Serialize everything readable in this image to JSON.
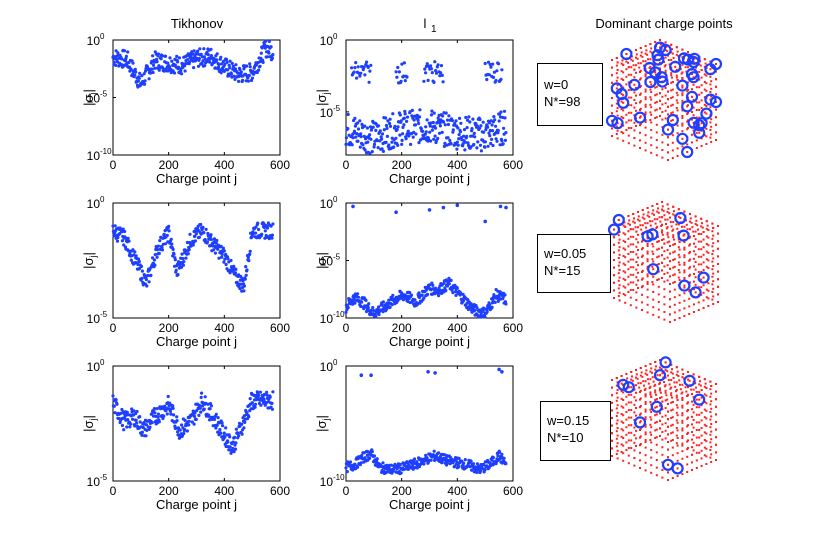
{
  "column_titles": {
    "tikhonov": "Tikhonov",
    "l1": "l",
    "l1_sub": "1",
    "dominant": "Dominant charge points"
  },
  "axis_labels": {
    "xlabel": "Charge point j",
    "ylabel_base": "|σ",
    "ylabel_sub": "j",
    "ylabel_end": "|"
  },
  "weights": [
    {
      "w_label": "w=0",
      "n_label": "N*=98"
    },
    {
      "w_label": "w=0.05",
      "n_label": "N*=15"
    },
    {
      "w_label": "w=0.15",
      "n_label": "N*=10"
    }
  ],
  "colors": {
    "points": "#1f3fff",
    "dominant_circle": "#1f3fff",
    "charge_grid": "#ff2020",
    "axis": "#000000"
  },
  "chart_data": [
    {
      "type": "scatter",
      "row": 0,
      "column": "Tikhonov",
      "scale": "log",
      "xlim": [
        0,
        600
      ],
      "xticks": [
        "0",
        "200",
        "400",
        "600"
      ],
      "ylim_exp": [
        -10,
        0
      ],
      "yticks": [
        {
          "base": "10",
          "exp": "0",
          "value_exp": 0
        },
        {
          "base": "10",
          "exp": "-5",
          "value_exp": -5
        },
        {
          "base": "10",
          "exp": "-10",
          "value_exp": -10
        }
      ],
      "xlabel": "Charge point j",
      "ylabel": "|σj|",
      "trend_x": [
        0,
        50,
        100,
        150,
        200,
        250,
        300,
        350,
        400,
        450,
        500,
        550,
        575
      ],
      "trend_log10": [
        -1.5,
        -1.7,
        -3.8,
        -1.8,
        -2.0,
        -2.2,
        -1.6,
        -1.4,
        -2.3,
        -3.0,
        -2.8,
        -0.7,
        -1.0
      ],
      "spread_log10": 0.8
    },
    {
      "type": "scatter",
      "row": 0,
      "column": "l1",
      "scale": "log",
      "xlim": [
        0,
        600
      ],
      "xticks": [
        "0",
        "200",
        "400",
        "600"
      ],
      "ylim_exp": [
        -8,
        0
      ],
      "yticks": [
        {
          "base": "10",
          "exp": "0",
          "value_exp": 0
        },
        {
          "base": "10",
          "exp": "-5",
          "value_exp": -5
        }
      ],
      "xlabel": "Charge point j",
      "ylabel": "|σj|",
      "trend_x": [
        0,
        100,
        200,
        300,
        400,
        500,
        575
      ],
      "trend_log10": [
        -6.2,
        -6.8,
        -6.1,
        -6.0,
        -6.4,
        -6.6,
        -6.0
      ],
      "spread_log10": 1.2,
      "upper_band_log10": [
        -1.5,
        -3.0
      ],
      "upper_clusters_x": [
        [
          20,
          90
        ],
        [
          180,
          220
        ],
        [
          280,
          350
        ],
        [
          500,
          560
        ]
      ]
    },
    {
      "type": "scatter",
      "row": 1,
      "column": "Tikhonov",
      "scale": "log",
      "xlim": [
        0,
        600
      ],
      "xticks": [
        "0",
        "200",
        "400",
        "600"
      ],
      "ylim_exp": [
        -5,
        0
      ],
      "yticks": [
        {
          "base": "10",
          "exp": "0",
          "value_exp": 0
        },
        {
          "base": "10",
          "exp": "-5",
          "value_exp": -5
        }
      ],
      "xlabel": "Charge point j",
      "ylabel": "|σj|",
      "trend_x": [
        0,
        40,
        80,
        120,
        160,
        200,
        230,
        280,
        320,
        360,
        400,
        440,
        470,
        500,
        575
      ],
      "trend_log10": [
        -1.2,
        -1.5,
        -2.5,
        -3.5,
        -2.0,
        -1.3,
        -3.0,
        -1.6,
        -1.2,
        -1.8,
        -2.3,
        -3.2,
        -3.6,
        -1.2,
        -1.2
      ],
      "spread_log10": 0.35
    },
    {
      "type": "scatter",
      "row": 1,
      "column": "l1",
      "scale": "log",
      "xlim": [
        0,
        600
      ],
      "xticks": [
        "0",
        "200",
        "400",
        "600"
      ],
      "ylim_exp": [
        -10,
        0
      ],
      "yticks": [
        {
          "base": "10",
          "exp": "0",
          "value_exp": 0
        },
        {
          "base": "10",
          "exp": "-5",
          "value_exp": -5
        },
        {
          "base": "10",
          "exp": "-10",
          "value_exp": -10
        }
      ],
      "xlabel": "Charge point j",
      "ylabel": "|σj|",
      "trend_x": [
        0,
        30,
        60,
        100,
        140,
        180,
        210,
        250,
        300,
        330,
        370,
        420,
        460,
        500,
        540,
        575
      ],
      "trend_log10": [
        -9.0,
        -8.2,
        -8.6,
        -9.6,
        -9.0,
        -8.3,
        -8.0,
        -8.6,
        -7.4,
        -7.6,
        -7.0,
        -8.3,
        -9.3,
        -9.6,
        -8.0,
        -8.4
      ],
      "spread_log10": 0.5,
      "outliers": [
        [
          25,
          -0.3
        ],
        [
          180,
          -0.8
        ],
        [
          300,
          -0.6
        ],
        [
          350,
          -0.4
        ],
        [
          400,
          -0.2
        ],
        [
          500,
          -1.6
        ],
        [
          555,
          -0.3
        ],
        [
          575,
          -0.4
        ]
      ]
    },
    {
      "type": "scatter",
      "row": 2,
      "column": "Tikhonov",
      "scale": "log",
      "xlim": [
        0,
        600
      ],
      "xticks": [
        "0",
        "200",
        "400",
        "600"
      ],
      "ylim_exp": [
        -5,
        0
      ],
      "yticks": [
        {
          "base": "10",
          "exp": "0",
          "value_exp": 0
        },
        {
          "base": "10",
          "exp": "-5",
          "value_exp": -5
        }
      ],
      "xlabel": "Charge point j",
      "ylabel": "|σj|",
      "trend_x": [
        0,
        40,
        80,
        110,
        150,
        200,
        240,
        280,
        320,
        360,
        400,
        430,
        470,
        500,
        575
      ],
      "trend_log10": [
        -1.6,
        -2.4,
        -2.2,
        -2.8,
        -2.2,
        -1.7,
        -2.8,
        -2.4,
        -1.5,
        -2.2,
        -3.0,
        -3.5,
        -2.4,
        -1.5,
        -1.5
      ],
      "spread_log10": 0.4
    },
    {
      "type": "scatter",
      "row": 2,
      "column": "l1",
      "scale": "log",
      "xlim": [
        0,
        600
      ],
      "xticks": [
        "0",
        "200",
        "400",
        "600"
      ],
      "ylim_exp": [
        -10,
        0
      ],
      "yticks": [
        {
          "base": "10",
          "exp": "0",
          "value_exp": 0
        },
        {
          "base": "10",
          "exp": "-10",
          "value_exp": -10
        }
      ],
      "xlabel": "Charge point j",
      "ylabel": "|σj|",
      "trend_x": [
        0,
        30,
        60,
        90,
        120,
        160,
        200,
        240,
        280,
        320,
        360,
        400,
        440,
        480,
        520,
        550,
        575
      ],
      "trend_log10": [
        -8.8,
        -8.6,
        -8.0,
        -7.6,
        -8.8,
        -9.0,
        -8.9,
        -8.6,
        -8.2,
        -7.8,
        -8.2,
        -8.4,
        -8.6,
        -9.0,
        -8.5,
        -7.8,
        -8.5
      ],
      "spread_log10": 0.45,
      "outliers": [
        [
          55,
          -0.8
        ],
        [
          90,
          -0.8
        ],
        [
          295,
          -0.5
        ],
        [
          320,
          -0.6
        ],
        [
          550,
          -0.3
        ],
        [
          560,
          -0.5
        ]
      ]
    }
  ]
}
